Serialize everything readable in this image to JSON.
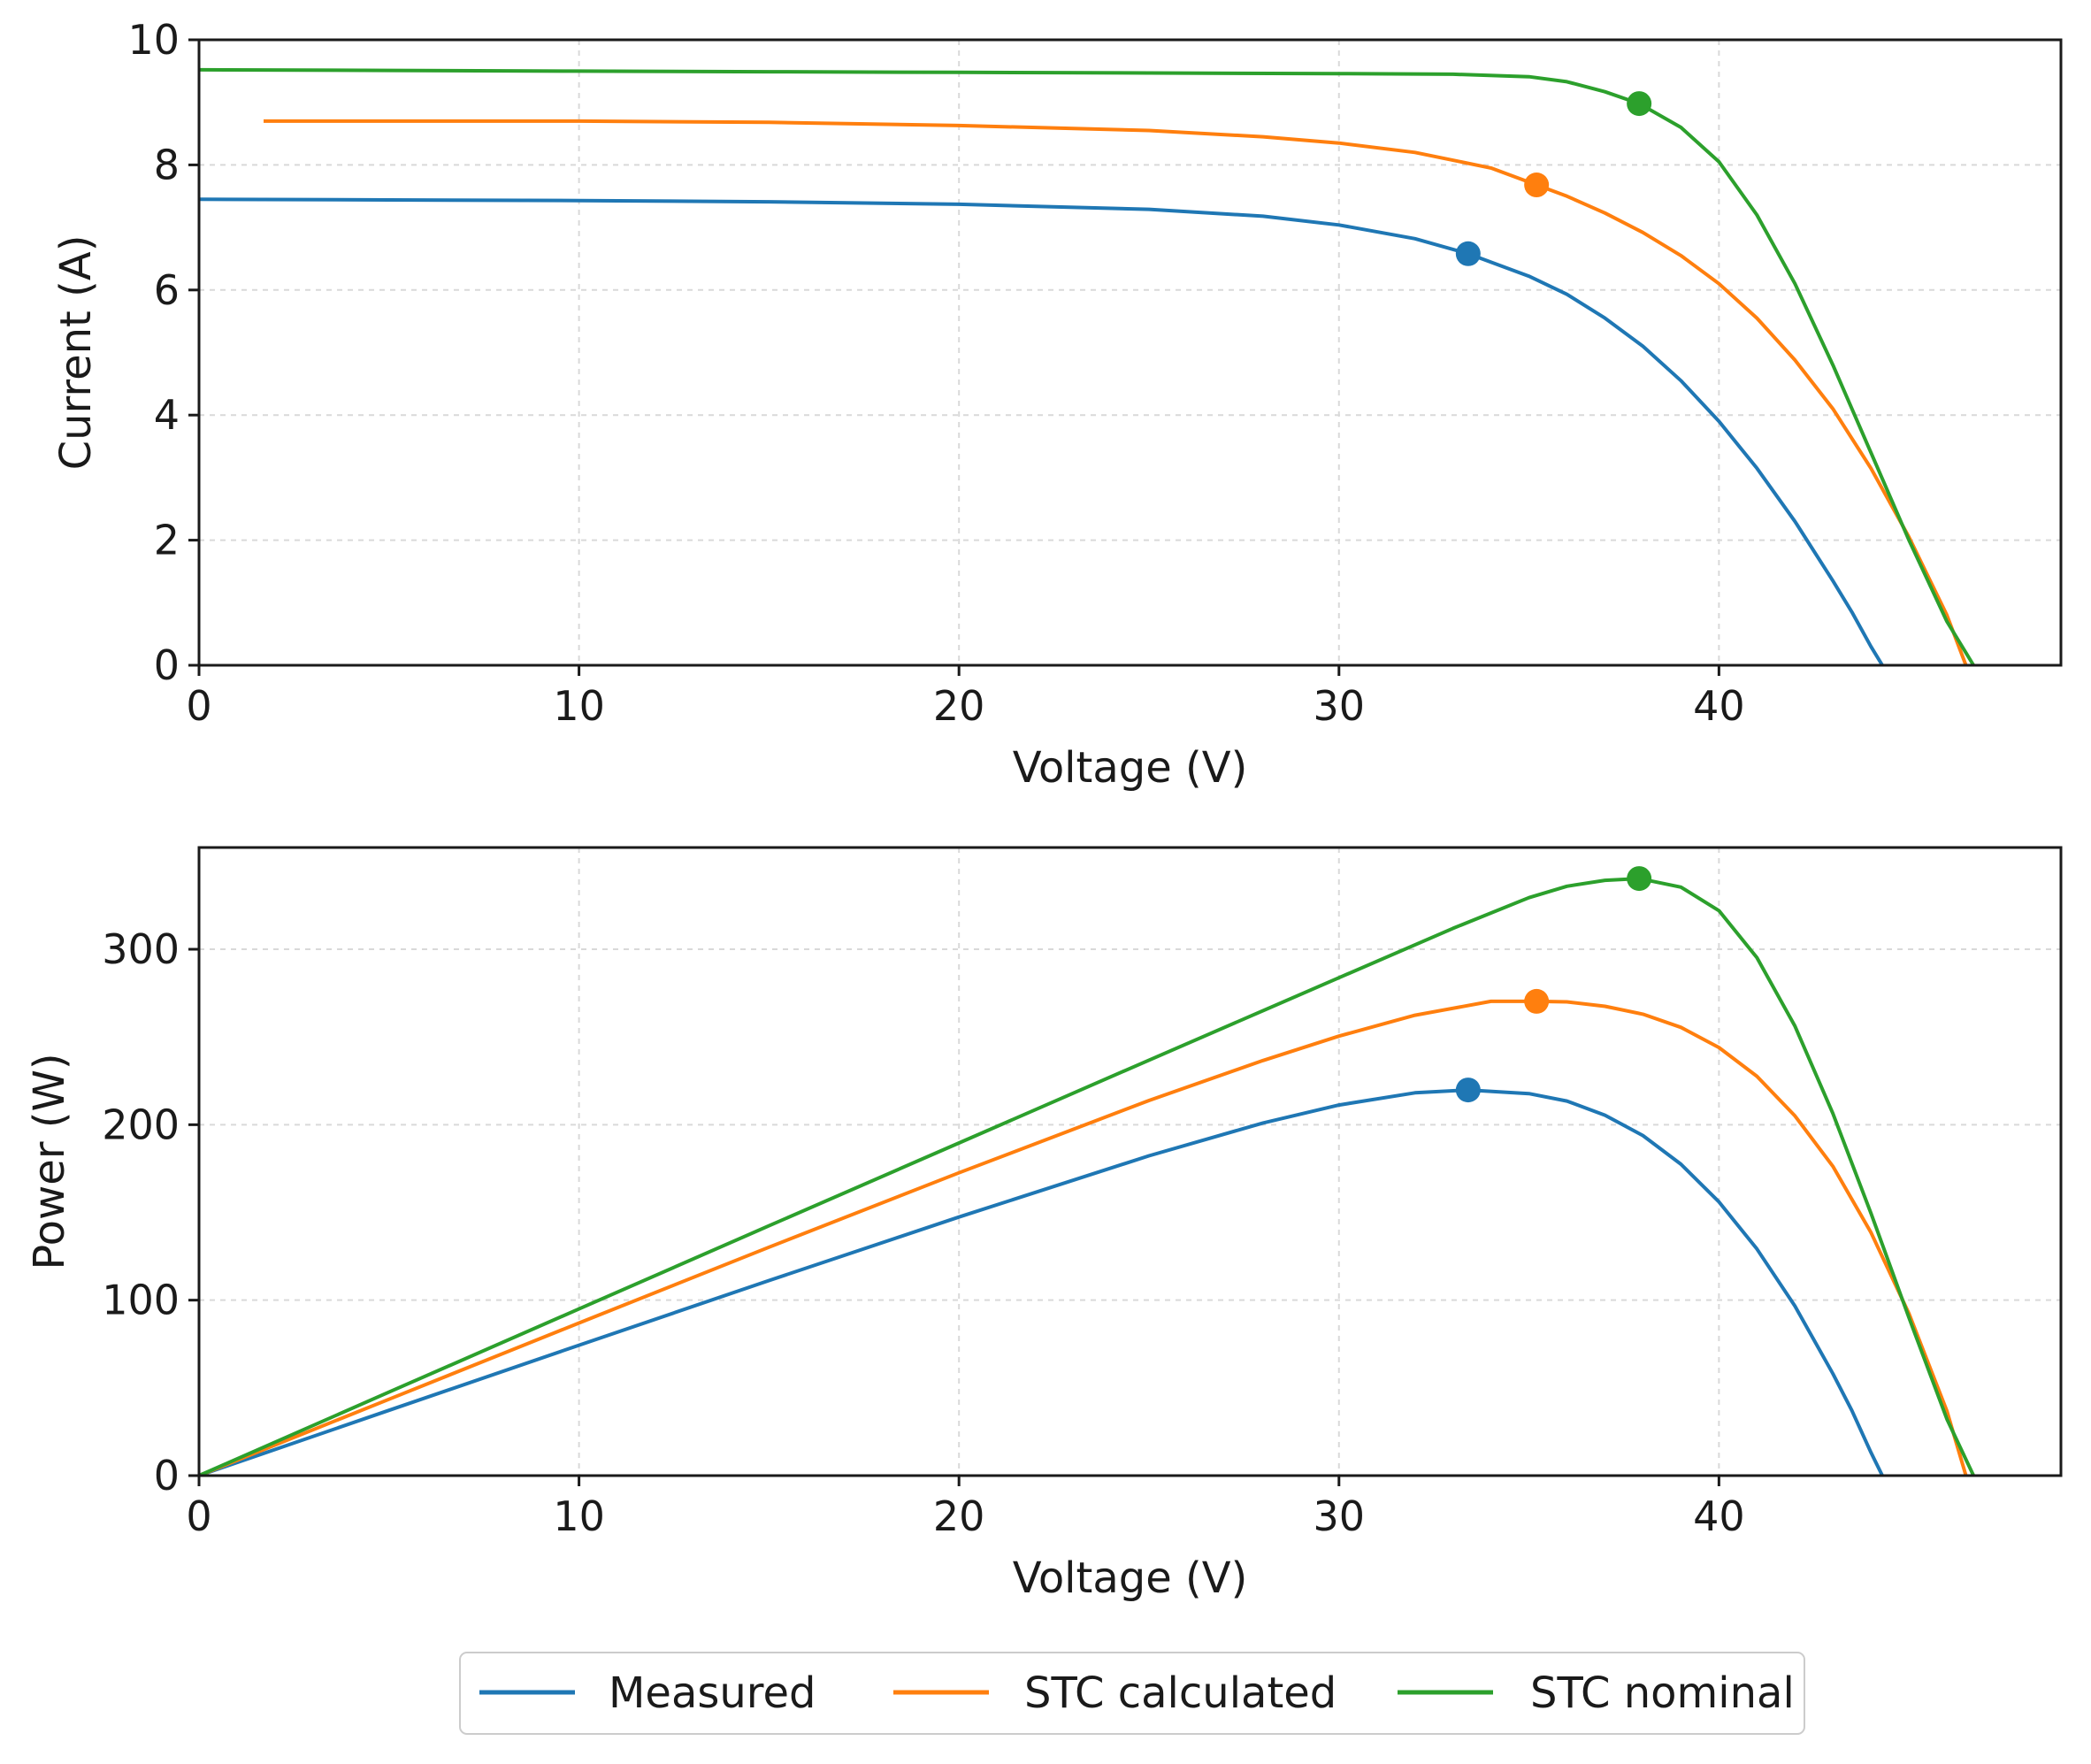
{
  "colors": {
    "Measured": "#1f77b4",
    "STC calculated": "#ff7f0e",
    "STC nominal": "#2ca02c"
  },
  "legend": {
    "placement": "bottom-center",
    "entries": [
      "Measured",
      "STC calculated",
      "STC nominal"
    ]
  },
  "chart_data": [
    {
      "type": "line",
      "xlabel": "Voltage (V)",
      "ylabel": "Current (A)",
      "xlim": [
        0,
        49
      ],
      "ylim": [
        0,
        10
      ],
      "xticks": [
        "0",
        "10",
        "20",
        "30",
        "40"
      ],
      "yticks": [
        "0",
        "2",
        "4",
        "6",
        "8",
        "10"
      ],
      "grid": true,
      "series": [
        {
          "name": "Measured",
          "x": [
            0,
            5,
            10,
            15,
            20,
            25,
            28,
            30,
            32,
            33.4,
            35,
            36,
            37,
            38,
            39,
            40,
            41,
            42,
            43,
            43.5,
            44,
            44.3
          ],
          "y": [
            7.45,
            7.44,
            7.43,
            7.41,
            7.37,
            7.29,
            7.18,
            7.04,
            6.82,
            6.58,
            6.22,
            5.93,
            5.55,
            5.1,
            4.55,
            3.9,
            3.15,
            2.3,
            1.35,
            0.85,
            0.3,
            0
          ]
        },
        {
          "name": "STC calculated",
          "x": [
            1.7,
            5,
            10,
            15,
            20,
            25,
            28,
            30,
            32,
            34,
            35.2,
            36,
            37,
            38,
            39,
            40,
            41,
            42,
            43,
            44,
            45,
            46,
            46.5
          ],
          "y": [
            8.7,
            8.7,
            8.7,
            8.68,
            8.63,
            8.55,
            8.45,
            8.35,
            8.2,
            7.95,
            7.68,
            7.5,
            7.23,
            6.92,
            6.55,
            6.1,
            5.55,
            4.88,
            4.1,
            3.15,
            2.05,
            0.8,
            0
          ]
        },
        {
          "name": "STC nominal",
          "x": [
            0,
            5,
            10,
            15,
            20,
            25,
            30,
            33,
            35,
            36,
            37,
            37.9,
            39,
            40,
            41,
            42,
            43,
            44,
            45,
            46,
            46.7
          ],
          "y": [
            9.52,
            9.51,
            9.5,
            9.49,
            9.48,
            9.47,
            9.46,
            9.45,
            9.41,
            9.33,
            9.17,
            8.98,
            8.6,
            8.05,
            7.2,
            6.1,
            4.8,
            3.4,
            2.0,
            0.7,
            0
          ]
        }
      ],
      "mpp": [
        {
          "name": "Measured",
          "x": 33.4,
          "y": 6.58
        },
        {
          "name": "STC calculated",
          "x": 35.2,
          "y": 7.68
        },
        {
          "name": "STC nominal",
          "x": 37.9,
          "y": 8.98
        }
      ]
    },
    {
      "type": "line",
      "xlabel": "Voltage (V)",
      "ylabel": "Power (W)",
      "xlim": [
        0,
        49
      ],
      "ylim": [
        0,
        358
      ],
      "xticks": [
        "0",
        "10",
        "20",
        "30",
        "40"
      ],
      "yticks": [
        "0",
        "100",
        "200",
        "300"
      ],
      "grid": true,
      "series": [
        {
          "name": "Measured",
          "x": [
            0,
            5,
            10,
            15,
            20,
            25,
            28,
            30,
            32,
            33.4,
            35,
            36,
            37,
            38,
            39,
            40,
            41,
            42,
            43,
            43.5,
            44,
            44.3
          ],
          "y": [
            0,
            37.2,
            74.3,
            111.2,
            147.4,
            182.3,
            201.0,
            211.2,
            218.2,
            219.8,
            217.7,
            213.5,
            205.4,
            193.8,
            177.5,
            156.0,
            129.2,
            96.6,
            58.1,
            37.0,
            13.2,
            0
          ]
        },
        {
          "name": "STC calculated",
          "x": [
            0,
            1.7,
            5,
            10,
            15,
            20,
            25,
            28,
            30,
            32,
            34,
            35.2,
            36,
            37,
            38,
            39,
            40,
            41,
            42,
            43,
            44,
            45,
            46,
            46.5
          ],
          "y": [
            0,
            14.8,
            43.5,
            87.0,
            130.2,
            172.6,
            213.8,
            236.6,
            250.5,
            262.4,
            270.3,
            270.3,
            270.0,
            267.5,
            263.0,
            255.5,
            244.0,
            227.6,
            205.0,
            176.3,
            138.6,
            92.3,
            36.8,
            0
          ]
        },
        {
          "name": "STC nominal",
          "x": [
            0,
            5,
            10,
            15,
            20,
            25,
            30,
            33,
            35,
            36,
            37,
            37.9,
            39,
            40,
            41,
            42,
            43,
            44,
            45,
            46,
            46.7
          ],
          "y": [
            0,
            47.6,
            95.0,
            142.4,
            189.6,
            236.8,
            283.8,
            311.9,
            329.4,
            335.9,
            339.3,
            340.3,
            335.4,
            322.0,
            295.2,
            256.2,
            206.4,
            149.6,
            90.0,
            32.2,
            0
          ]
        }
      ],
      "mpp": [
        {
          "name": "Measured",
          "x": 33.4,
          "y": 219.8
        },
        {
          "name": "STC calculated",
          "x": 35.2,
          "y": 270.3
        },
        {
          "name": "STC nominal",
          "x": 37.9,
          "y": 340.3
        }
      ]
    }
  ]
}
